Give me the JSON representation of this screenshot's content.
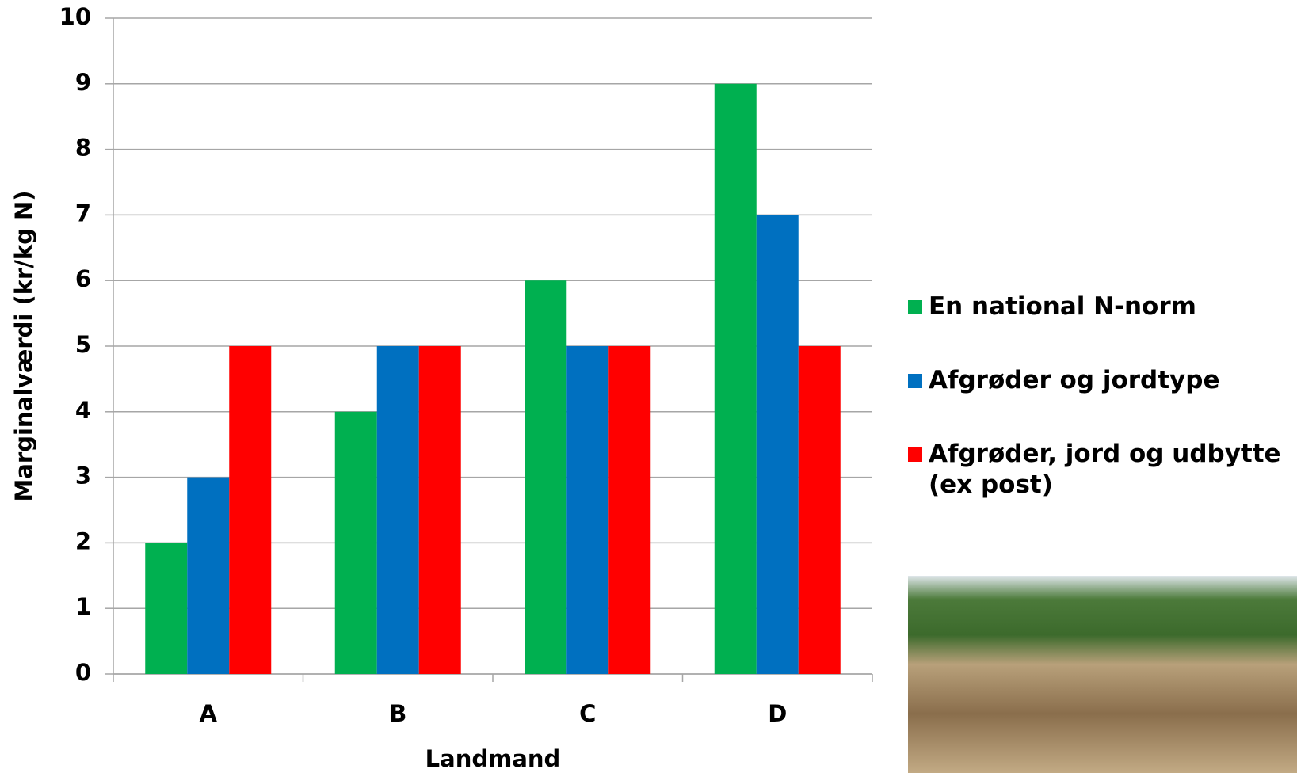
{
  "chart_data": {
    "type": "bar",
    "x_label": "Landmand",
    "y_label": "Marginalværdi (kr/kg N)",
    "categories": [
      "A",
      "B",
      "C",
      "D"
    ],
    "series": [
      {
        "name": "En national N-norm",
        "color": "#00b050",
        "values": [
          2,
          4,
          6,
          9
        ]
      },
      {
        "name": "Afgrøder og jordtype",
        "color": "#0070c0",
        "values": [
          3,
          5,
          5,
          7
        ]
      },
      {
        "name": "Afgrøder, jord og udbytte (ex post)",
        "color": "#ff0000",
        "values": [
          5,
          5,
          5,
          5
        ]
      }
    ],
    "ylim": [
      0,
      10
    ],
    "yticks": [
      0,
      1,
      2,
      3,
      4,
      5,
      6,
      7,
      8,
      9,
      10
    ],
    "grid": true,
    "legend": "right"
  }
}
